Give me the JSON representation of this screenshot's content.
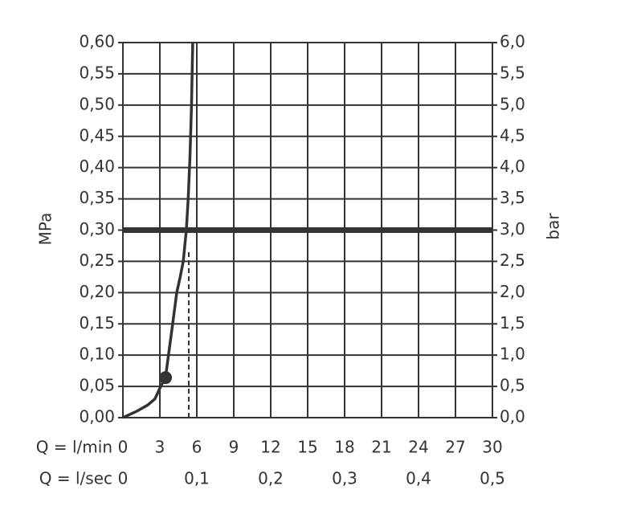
{
  "chart_data": {
    "type": "line",
    "ylabel": "MPa",
    "y2label": "bar",
    "xlabel": "Q = l/min",
    "x2label": "Q = l/sec",
    "x": [
      0,
      1.1,
      2.0,
      2.6,
      3.07,
      3.46,
      3.7,
      4.04,
      4.37,
      4.65,
      4.9,
      5.15,
      5.3,
      5.45,
      5.57,
      5.67
    ],
    "values": [
      0,
      0.01,
      0.02,
      0.03,
      0.05,
      0.064,
      0.1,
      0.15,
      0.2,
      0.225,
      0.25,
      0.3,
      0.35,
      0.42,
      0.5,
      0.6
    ],
    "color": "#333333",
    "marker": {
      "x": 3.46,
      "y": 0.064
    },
    "dashed_x": 5.35,
    "dashed_top": 0.27,
    "reference_y": 0.3,
    "xlim": [
      0,
      30
    ],
    "xticks": [
      0,
      3,
      6,
      9,
      12,
      15,
      18,
      21,
      24,
      27,
      30
    ],
    "x2lim": [
      0,
      0.5
    ],
    "x2ticks": [
      {
        "value": 0,
        "label": "0"
      },
      {
        "value": 0.1,
        "label": "0,1"
      },
      {
        "value": 0.2,
        "label": "0,2"
      },
      {
        "value": 0.3,
        "label": "0,3"
      },
      {
        "value": 0.4,
        "label": "0,4"
      },
      {
        "value": 0.5,
        "label": "0,5"
      }
    ],
    "ylim": [
      0,
      0.6
    ],
    "yticks": [
      {
        "value": 0,
        "label": "0,00"
      },
      {
        "value": 0.05,
        "label": "0,05"
      },
      {
        "value": 0.1,
        "label": "0,10"
      },
      {
        "value": 0.15,
        "label": "0,15"
      },
      {
        "value": 0.2,
        "label": "0,20"
      },
      {
        "value": 0.25,
        "label": "0,25"
      },
      {
        "value": 0.3,
        "label": "0,30"
      },
      {
        "value": 0.35,
        "label": "0,35"
      },
      {
        "value": 0.4,
        "label": "0,40"
      },
      {
        "value": 0.45,
        "label": "0,45"
      },
      {
        "value": 0.5,
        "label": "0,50"
      },
      {
        "value": 0.55,
        "label": "0,55"
      },
      {
        "value": 0.6,
        "label": "0,60"
      }
    ],
    "y2lim": [
      0,
      6
    ],
    "y2ticks": [
      {
        "value": 0,
        "label": "0,0"
      },
      {
        "value": 0.5,
        "label": "0,5"
      },
      {
        "value": 1,
        "label": "1,0"
      },
      {
        "value": 1.5,
        "label": "1,5"
      },
      {
        "value": 2,
        "label": "2,0"
      },
      {
        "value": 2.5,
        "label": "2,5"
      },
      {
        "value": 3,
        "label": "3,0"
      },
      {
        "value": 3.5,
        "label": "3,5"
      },
      {
        "value": 4,
        "label": "4,0"
      },
      {
        "value": 4.5,
        "label": "4,5"
      },
      {
        "value": 5,
        "label": "5,0"
      },
      {
        "value": 5.5,
        "label": "5,5"
      },
      {
        "value": 6,
        "label": "6,0"
      }
    ],
    "grid": true
  }
}
